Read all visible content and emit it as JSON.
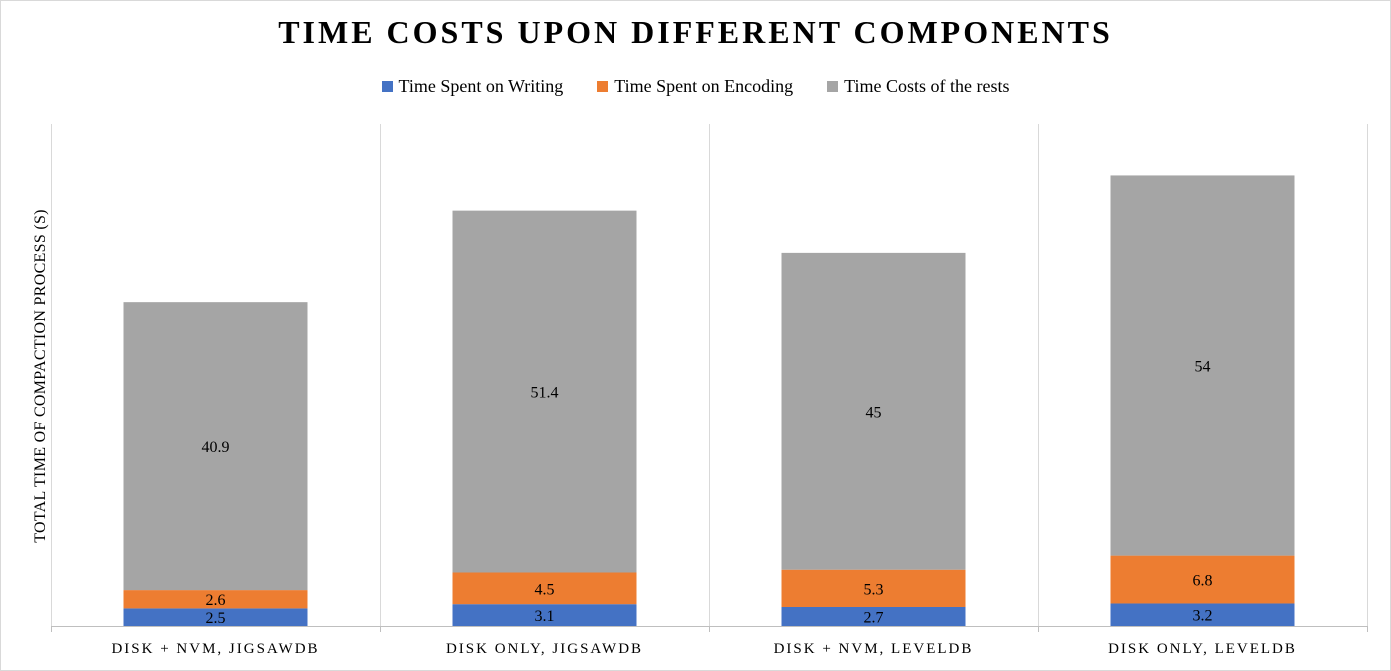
{
  "chart_data": {
    "type": "bar",
    "stacked": true,
    "title": "TIME COSTS UPON DIFFERENT COMPONENTS",
    "ylabel": "TOTAL TIME OF COMPACTION PROCESS (S)",
    "xlabel": "",
    "categories": [
      "DISK + NVM, JIGSAWDB",
      "DISK ONLY, JIGSAWDB",
      "DISK + NVM, LEVELDB",
      "DISK ONLY, LEVELDB"
    ],
    "series": [
      {
        "name": "Time Spent on Writing",
        "values": [
          2.5,
          3.1,
          2.7,
          3.2
        ],
        "color": "#4472c4"
      },
      {
        "name": "Time Spent on Encoding",
        "values": [
          2.6,
          4.5,
          5.3,
          6.8
        ],
        "color": "#ed7d31"
      },
      {
        "name": "Time Costs of the rests",
        "values": [
          40.9,
          51.4,
          45,
          54
        ],
        "color": "#a5a5a5"
      }
    ],
    "ylim": [
      0,
      70
    ],
    "grid": false,
    "legend": "top",
    "data_labels": true
  }
}
